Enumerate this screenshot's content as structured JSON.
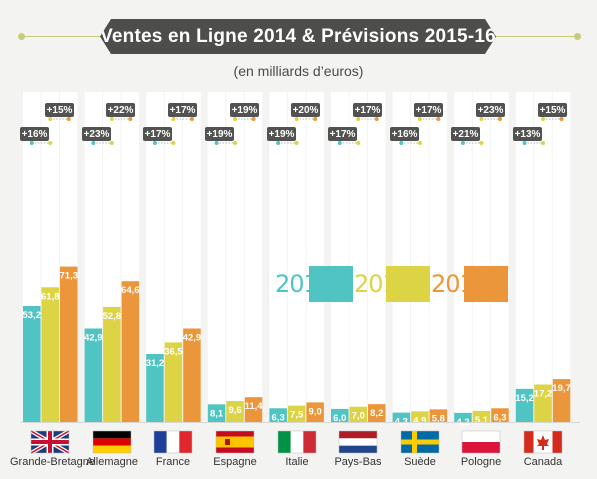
{
  "title": "Ventes en Ligne 2014 & Prévisions 2015-16",
  "subtitle": "(en milliards d’euros)",
  "colors": {
    "2014": "#50c3c3",
    "2015": "#dcd345",
    "2016": "#eb963a",
    "badge": "#525250",
    "banner": "#4d4d4b"
  },
  "chart_data": {
    "type": "bar",
    "title": "Ventes en Ligne 2014 & Prévisions 2015-16",
    "subtitle": "(en milliards d’euros)",
    "unit": "milliards d’euros",
    "legend_position": "center-right",
    "categories": [
      "Grande-Bretagne",
      "Allemagne",
      "France",
      "Espagne",
      "Italie",
      "Pays-Bas",
      "Suède",
      "Pologne",
      "Canada"
    ],
    "series": [
      {
        "name": "2014",
        "color": "#50c3c3",
        "values": [
          53.2,
          42.9,
          31.2,
          8.1,
          6.3,
          6.0,
          4.3,
          4.2,
          15.2
        ],
        "labels": [
          "53,2",
          "42,9",
          "31,2",
          "8,1",
          "6,3",
          "6,0",
          "4,3",
          "4,2",
          "15,2"
        ]
      },
      {
        "name": "2015",
        "color": "#dcd345",
        "values": [
          61.8,
          52.8,
          36.5,
          9.6,
          7.5,
          7.0,
          4.9,
          5.1,
          17.2
        ],
        "labels": [
          "61,8",
          "52,8",
          "36,5",
          "9,6",
          "7,5",
          "7,0",
          "4,9",
          "5,1",
          "17,2"
        ]
      },
      {
        "name": "2016",
        "color": "#eb963a",
        "values": [
          71.3,
          64.6,
          42.9,
          11.4,
          9.0,
          8.2,
          5.8,
          6.3,
          19.7
        ],
        "labels": [
          "71,3",
          "64,6",
          "42,9",
          "11,4",
          "9,0",
          "8,2",
          "5,8",
          "6,3",
          "19,7"
        ]
      }
    ],
    "growth_2014_2015": [
      "+16%",
      "+23%",
      "+17%",
      "+19%",
      "+19%",
      "+17%",
      "+16%",
      "+21%",
      "+13%"
    ],
    "growth_2015_2016": [
      "+15%",
      "+22%",
      "+17%",
      "+19%",
      "+20%",
      "+17%",
      "+17%",
      "+23%",
      "+15%"
    ],
    "flags": [
      "uk-flag-icon",
      "germany-flag-icon",
      "france-flag-icon",
      "spain-flag-icon",
      "italy-flag-icon",
      "netherlands-flag-icon",
      "sweden-flag-icon",
      "poland-flag-icon",
      "canada-flag-icon"
    ],
    "ylim": [
      0,
      75
    ]
  }
}
